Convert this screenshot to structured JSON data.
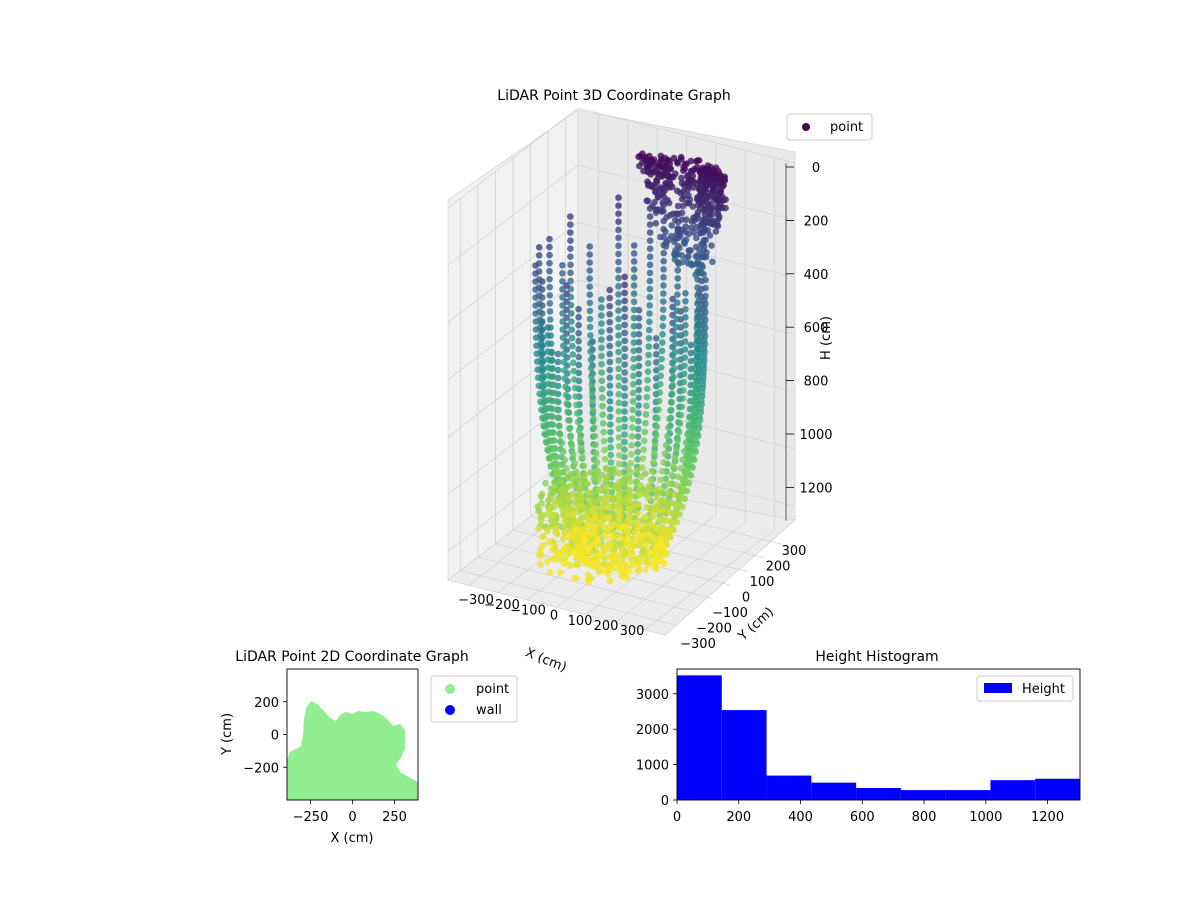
{
  "chart_data": [
    {
      "type": "scatter",
      "projection": "3d",
      "title": "LiDAR Point 3D Coordinate Graph",
      "xlabel": "X (cm)",
      "ylabel": "Y (cm)",
      "zlabel": "H (cm)",
      "x_ticks": [
        "−300",
        "−200",
        "−100",
        "0",
        "100",
        "200",
        "300"
      ],
      "y_ticks": [
        "−300",
        "−200",
        "−100",
        "0",
        "100",
        "200",
        "300"
      ],
      "z_ticks": [
        "0",
        "200",
        "400",
        "600",
        "800",
        "1000",
        "1200"
      ],
      "xlim": [
        -370,
        370
      ],
      "ylim": [
        -370,
        370
      ],
      "zlim": [
        1300,
        0
      ],
      "z_inverted": true,
      "colormap": "viridis",
      "legend": [
        {
          "label": "point",
          "color": "#440154"
        }
      ],
      "legend_position": "top-right",
      "grid": true
    },
    {
      "type": "scatter",
      "title": "LiDAR Point 2D Coordinate Graph",
      "xlabel": "X (cm)",
      "ylabel": "Y (cm)",
      "x_ticks": [
        "−250",
        "0",
        "250"
      ],
      "y_ticks": [
        "200",
        "0",
        "−200"
      ],
      "xlim": [
        -390,
        390
      ],
      "ylim": [
        -400,
        400
      ],
      "series": [
        {
          "name": "point",
          "color": "#90ee90"
        },
        {
          "name": "wall",
          "color": "#0000ff"
        }
      ],
      "legend_position": "outside-right"
    },
    {
      "type": "bar",
      "title": "Height Histogram",
      "legend": [
        {
          "label": "Height",
          "color": "#0000ff"
        }
      ],
      "legend_position": "top-right",
      "bin_edges": [
        0,
        145,
        290,
        435,
        580,
        725,
        870,
        1015,
        1160,
        1305
      ],
      "values": [
        3520,
        2540,
        690,
        490,
        340,
        280,
        280,
        560,
        600
      ],
      "x_ticks": [
        "0",
        "200",
        "400",
        "600",
        "800",
        "1000",
        "1200"
      ],
      "y_ticks": [
        "0",
        "1000",
        "2000",
        "3000"
      ],
      "xlim": [
        0,
        1305
      ],
      "ylim": [
        0,
        3700
      ],
      "color": "#0000ff"
    }
  ]
}
